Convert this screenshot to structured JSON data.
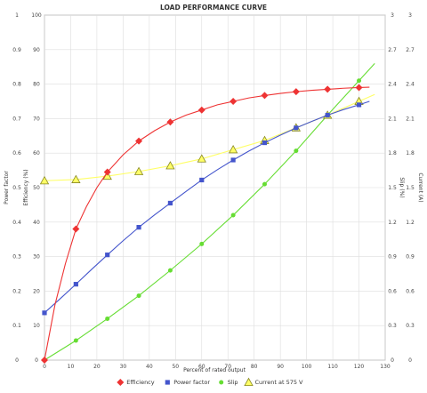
{
  "chart_data": {
    "type": "line",
    "title": "LOAD PERFORMANCE CURVE",
    "xlabel": "Percent of rated output",
    "xlim": [
      0,
      130
    ],
    "xticks": [
      0,
      10,
      20,
      30,
      40,
      50,
      60,
      70,
      80,
      90,
      100,
      110,
      120,
      130
    ],
    "left_axis": {
      "ylim": [
        0,
        1
      ],
      "ticks": [
        "0",
        "0.1",
        "0.2",
        "0.3",
        "0.4",
        "0.5",
        "0.6",
        "0.7",
        "0.8",
        "0.9",
        "1"
      ],
      "labels": [
        "Power factor"
      ]
    },
    "left_axis_2": {
      "ylim": [
        0,
        100
      ],
      "ticks": [
        "0",
        "10",
        "20",
        "30",
        "40",
        "50",
        "60",
        "70",
        "80",
        "90",
        "100"
      ],
      "labels": [
        "Efficiency (%)"
      ]
    },
    "right_axis": {
      "ylim": [
        0,
        3
      ],
      "ticks": [
        "0",
        "0.3",
        "0.6",
        "0.9",
        "1.2",
        "1.5",
        "1.8",
        "2.1",
        "2.4",
        "2.7",
        "3"
      ],
      "labels": [
        "Slip (%)",
        "Current (A)"
      ]
    },
    "grid": true,
    "legend_position": "bottom",
    "series": [
      {
        "name": "Efficiency",
        "color": "#ee3333",
        "marker": "diamond",
        "axis": "percent",
        "points": [
          [
            0,
            0
          ],
          [
            12,
            38
          ],
          [
            24,
            54.5
          ],
          [
            36,
            63.5
          ],
          [
            48,
            69
          ],
          [
            60,
            72.5
          ],
          [
            72,
            75
          ],
          [
            84,
            76.7
          ],
          [
            96,
            77.8
          ],
          [
            108,
            78.5
          ],
          [
            120,
            79
          ]
        ],
        "curve": [
          [
            0,
            0
          ],
          [
            4,
            16
          ],
          [
            8,
            28
          ],
          [
            12,
            38
          ],
          [
            16,
            44.5
          ],
          [
            20,
            50
          ],
          [
            24,
            54.5
          ],
          [
            30,
            59.5
          ],
          [
            36,
            63.5
          ],
          [
            42,
            66.5
          ],
          [
            48,
            69
          ],
          [
            54,
            71
          ],
          [
            60,
            72.5
          ],
          [
            66,
            74
          ],
          [
            72,
            75
          ],
          [
            78,
            76
          ],
          [
            84,
            76.7
          ],
          [
            90,
            77.3
          ],
          [
            96,
            77.8
          ],
          [
            102,
            78.2
          ],
          [
            108,
            78.5
          ],
          [
            114,
            78.8
          ],
          [
            120,
            79
          ],
          [
            124,
            79.1
          ]
        ]
      },
      {
        "name": "Power factor",
        "color": "#4455cc",
        "marker": "square",
        "axis": "percent",
        "points": [
          [
            0,
            13.7
          ],
          [
            12,
            22
          ],
          [
            24,
            30.5
          ],
          [
            36,
            38.5
          ],
          [
            48,
            45.5
          ],
          [
            60,
            52.2
          ],
          [
            72,
            58
          ],
          [
            84,
            63
          ],
          [
            96,
            67.3
          ],
          [
            108,
            71
          ],
          [
            120,
            74
          ]
        ],
        "curve": [
          [
            0,
            13.7
          ],
          [
            6,
            17.8
          ],
          [
            12,
            22
          ],
          [
            18,
            26.3
          ],
          [
            24,
            30.5
          ],
          [
            30,
            34.6
          ],
          [
            36,
            38.5
          ],
          [
            42,
            42.1
          ],
          [
            48,
            45.5
          ],
          [
            54,
            48.9
          ],
          [
            60,
            52.2
          ],
          [
            66,
            55.2
          ],
          [
            72,
            58
          ],
          [
            78,
            60.6
          ],
          [
            84,
            63
          ],
          [
            90,
            65.2
          ],
          [
            96,
            67.3
          ],
          [
            102,
            69.2
          ],
          [
            108,
            71
          ],
          [
            114,
            72.6
          ],
          [
            120,
            74
          ],
          [
            124,
            75
          ]
        ]
      },
      {
        "name": "Slip",
        "color": "#66dd33",
        "marker": "circle",
        "axis": "right",
        "points": [
          [
            0,
            0
          ],
          [
            12,
            0.17
          ],
          [
            24,
            0.36
          ],
          [
            36,
            0.56
          ],
          [
            48,
            0.78
          ],
          [
            60,
            1.01
          ],
          [
            72,
            1.26
          ],
          [
            84,
            1.53
          ],
          [
            96,
            1.82
          ],
          [
            108,
            2.13
          ],
          [
            120,
            2.43
          ]
        ],
        "curve": [
          [
            0,
            0
          ],
          [
            12,
            0.17
          ],
          [
            24,
            0.36
          ],
          [
            36,
            0.56
          ],
          [
            48,
            0.78
          ],
          [
            60,
            1.01
          ],
          [
            72,
            1.26
          ],
          [
            84,
            1.53
          ],
          [
            96,
            1.82
          ],
          [
            108,
            2.13
          ],
          [
            120,
            2.43
          ],
          [
            126,
            2.58
          ]
        ]
      },
      {
        "name": "Current at 575 V",
        "color": "#ffff66",
        "stroke": "#888822",
        "marker": "triangle",
        "axis": "right",
        "points": [
          [
            0,
            1.56
          ],
          [
            12,
            1.57
          ],
          [
            24,
            1.6
          ],
          [
            36,
            1.64
          ],
          [
            48,
            1.69
          ],
          [
            60,
            1.75
          ],
          [
            72,
            1.83
          ],
          [
            84,
            1.91
          ],
          [
            96,
            2.02
          ],
          [
            108,
            2.13
          ],
          [
            120,
            2.25
          ]
        ],
        "curve": [
          [
            0,
            1.56
          ],
          [
            12,
            1.57
          ],
          [
            24,
            1.6
          ],
          [
            36,
            1.64
          ],
          [
            48,
            1.69
          ],
          [
            60,
            1.75
          ],
          [
            72,
            1.83
          ],
          [
            84,
            1.91
          ],
          [
            96,
            2.02
          ],
          [
            108,
            2.13
          ],
          [
            120,
            2.25
          ],
          [
            126,
            2.31
          ]
        ]
      }
    ]
  }
}
